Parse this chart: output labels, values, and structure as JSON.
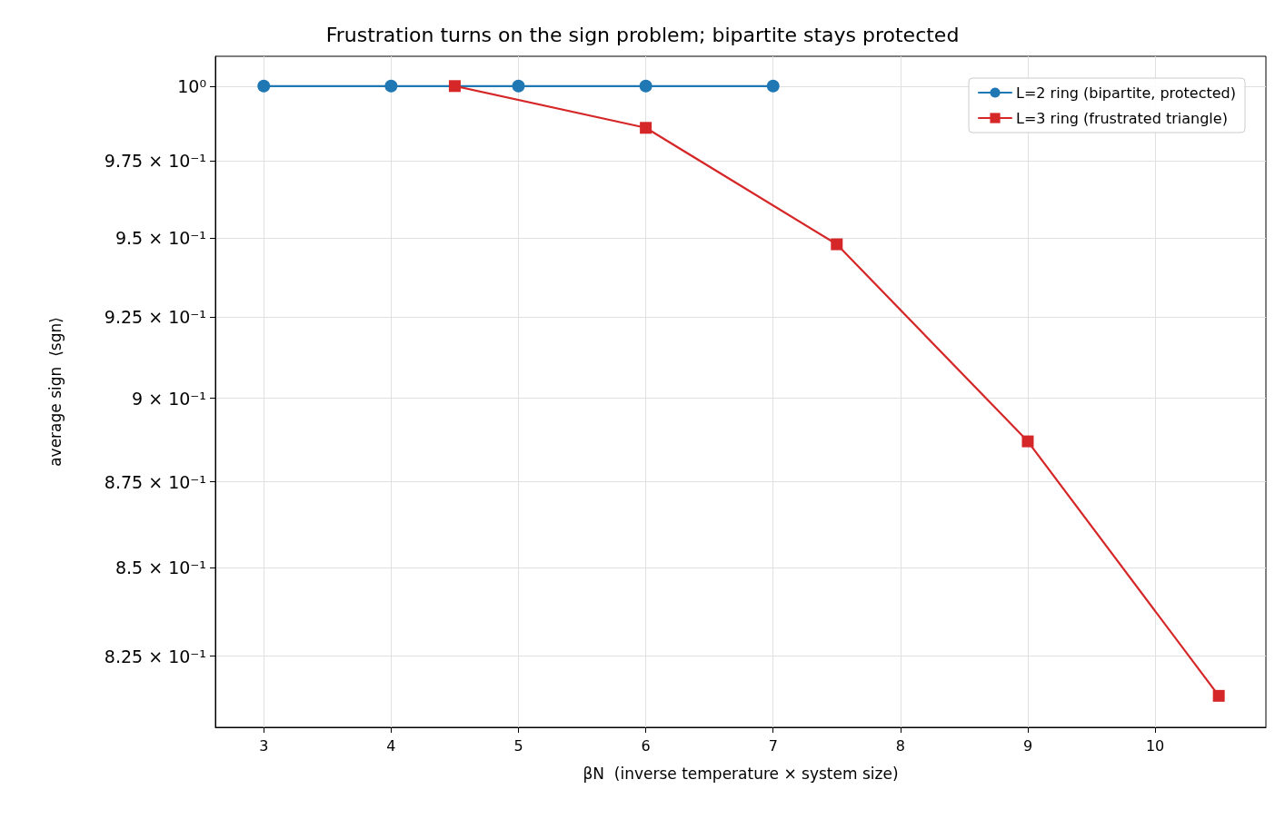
{
  "chart_data": {
    "type": "line",
    "title": "Frustration turns on the sign problem; bipartite stays protected",
    "xlabel": "βN  (inverse temperature × system size)",
    "ylabel": "average sign  ⟨sgn⟩",
    "log": "y",
    "grid": true,
    "legend": "top right",
    "xlim": [
      2.62,
      10.87
    ],
    "xticks": [
      3,
      4,
      5,
      6,
      7,
      8,
      9,
      10
    ],
    "ylim": [
      0.8054,
      1.0101
    ],
    "yticks": [
      {
        "value": 0.825,
        "label": "8.25 × 10⁻¹"
      },
      {
        "value": 0.85,
        "label": "8.5 × 10⁻¹"
      },
      {
        "value": 0.875,
        "label": "8.75 × 10⁻¹"
      },
      {
        "value": 0.9,
        "label": "9 × 10⁻¹"
      },
      {
        "value": 0.925,
        "label": "9.25 × 10⁻¹"
      },
      {
        "value": 0.95,
        "label": "9.5 × 10⁻¹"
      },
      {
        "value": 0.975,
        "label": "9.75 × 10⁻¹"
      },
      {
        "value": 1,
        "label": "10⁰"
      }
    ],
    "series": [
      {
        "name": "L=2 ring (bipartite, protected)",
        "color": "#1f77b4",
        "marker": "circle",
        "x": [
          3,
          4,
          5,
          6,
          7
        ],
        "values": [
          1,
          1,
          1,
          1,
          1
        ]
      },
      {
        "name": "L=3 ring (frustrated triangle)",
        "color": "#d62728",
        "marker": "square",
        "x": [
          4.5,
          6,
          7.5,
          9,
          10.5
        ],
        "values": [
          1,
          0.986,
          0.948,
          0.887,
          0.814
        ]
      }
    ]
  }
}
